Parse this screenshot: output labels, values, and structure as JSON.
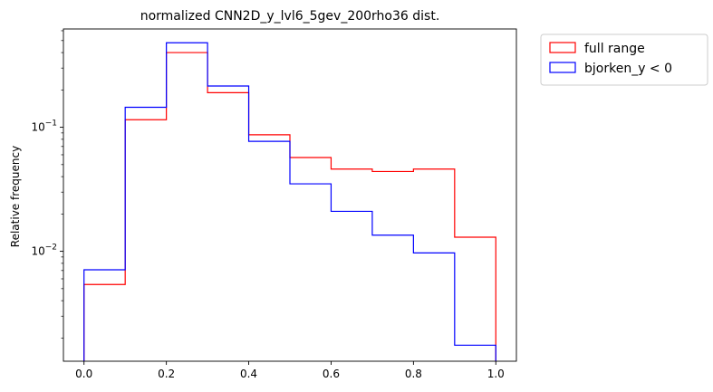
{
  "chart_data": {
    "type": "histogram-step",
    "title": "normalized CNN2D_y_lvl6_5gev_200rho36 dist.",
    "xlabel": "",
    "ylabel": "Relative frequency",
    "yscale": "log",
    "xlim": [
      -0.05,
      1.05
    ],
    "ylim": [
      0.0013,
      0.62
    ],
    "bin_edges": [
      0.0,
      0.1,
      0.2,
      0.3,
      0.4,
      0.5,
      0.6,
      0.7,
      0.8,
      0.9,
      1.0
    ],
    "x_ticks": [
      "0.0",
      "0.2",
      "0.4",
      "0.6",
      "0.8",
      "1.0"
    ],
    "x_tick_values": [
      0.0,
      0.2,
      0.4,
      0.6,
      0.8,
      1.0
    ],
    "y_major_ticks": [
      {
        "value": 0.01,
        "base": "10",
        "exp": "−2"
      },
      {
        "value": 0.1,
        "base": "10",
        "exp": "−1"
      }
    ],
    "legend_position": "outside upper right",
    "grid": false,
    "series": [
      {
        "name": "full range",
        "color": "#ff0000",
        "values": [
          0.0054,
          0.115,
          0.4,
          0.19,
          0.087,
          0.057,
          0.046,
          0.044,
          0.046,
          0.013
        ]
      },
      {
        "name": "bjorken_y < 0",
        "color": "#0000ff",
        "values": [
          0.0071,
          0.145,
          0.48,
          0.215,
          0.077,
          0.035,
          0.021,
          0.0135,
          0.0097,
          0.00175
        ]
      }
    ]
  }
}
